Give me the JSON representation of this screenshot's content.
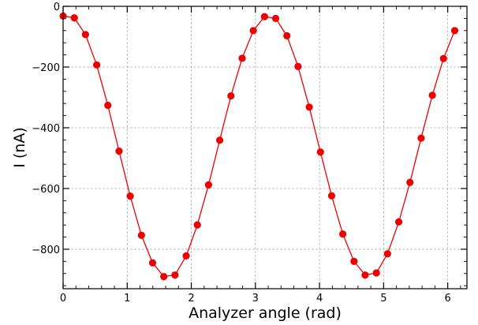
{
  "chart_data": {
    "type": "line",
    "title": "",
    "xlabel": "Analyzer angle (rad)",
    "ylabel": "I (nA)",
    "xlim": [
      0,
      6.3
    ],
    "ylim": [
      -930,
      0
    ],
    "x_ticks": [
      0,
      1,
      2,
      3,
      4,
      5,
      6
    ],
    "x_tick_labels": [
      "0",
      "1",
      "2",
      "3",
      "4",
      "5",
      "6"
    ],
    "y_ticks": [
      0,
      -200,
      -400,
      -600,
      -800
    ],
    "y_tick_labels": [
      "0",
      "−200",
      "−400",
      "−600",
      "−800"
    ],
    "grid": true,
    "legend": "none",
    "series": [
      {
        "color": "#ee0000",
        "marker": "circle",
        "x": [
          0,
          0.175,
          0.349,
          0.524,
          0.698,
          0.873,
          1.047,
          1.222,
          1.396,
          1.571,
          1.745,
          1.92,
          2.094,
          2.269,
          2.443,
          2.618,
          2.793,
          2.967,
          3.142,
          3.316,
          3.491,
          3.665,
          3.84,
          4.014,
          4.189,
          4.363,
          4.538,
          4.712,
          4.887,
          5.061,
          5.236,
          5.411,
          5.585,
          5.76,
          5.934,
          6.109
        ],
        "y": [
          -32,
          -38,
          -93,
          -193,
          -326,
          -477,
          -625,
          -754,
          -845,
          -890,
          -885,
          -822,
          -720,
          -588,
          -441,
          -295,
          -171,
          -80,
          -34,
          -40,
          -97,
          -198,
          -332,
          -480,
          -624,
          -750,
          -840,
          -885,
          -878,
          -815,
          -710,
          -580,
          -434,
          -293,
          -172,
          -80
        ]
      }
    ]
  }
}
